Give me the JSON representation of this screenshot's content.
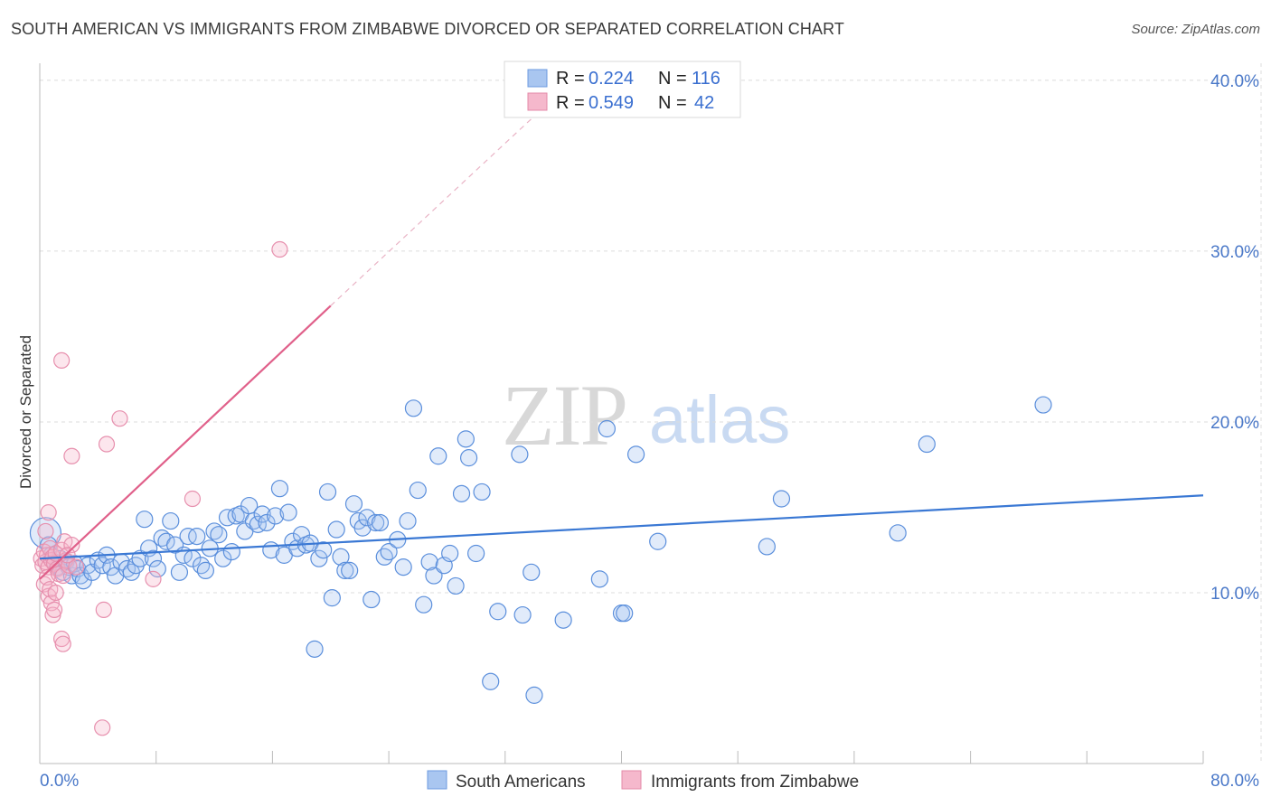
{
  "header": {
    "title": "SOUTH AMERICAN VS IMMIGRANTS FROM ZIMBABWE DIVORCED OR SEPARATED CORRELATION CHART",
    "source": "Source: ZipAtlas.com"
  },
  "watermark": {
    "zip": "ZIP",
    "atlas": "atlas"
  },
  "colors": {
    "blue": "#3a78d4",
    "blue_fill": "#a9c6f0",
    "pink": "#e0608a",
    "pink_fill": "#f5b8cc",
    "tick_text": "#4a78c8"
  },
  "legend_top": {
    "rows": [
      {
        "r_label": "R =",
        "r_value": "0.224",
        "n_label": "N =",
        "n_value": "116"
      },
      {
        "r_label": "R =",
        "r_value": "0.549",
        "n_label": "N =",
        "n_value": "42"
      }
    ]
  },
  "legend_bottom": {
    "items": [
      {
        "label": "South Americans"
      },
      {
        "label": "Immigrants from Zimbabwe"
      }
    ]
  },
  "chart_data": {
    "type": "scatter",
    "title": "SOUTH AMERICAN VS IMMIGRANTS FROM ZIMBABWE DIVORCED OR SEPARATED CORRELATION CHART",
    "xlabel": "",
    "ylabel": "Divorced or Separated",
    "xlim": [
      0,
      80
    ],
    "ylim": [
      0,
      41
    ],
    "x_tick_labels": [
      "0.0%",
      "80.0%"
    ],
    "y_ticks": [
      10,
      20,
      30,
      40
    ],
    "y_tick_labels": [
      "10.0%",
      "20.0%",
      "30.0%",
      "40.0%"
    ],
    "grid": true,
    "legend_placement": "bottom",
    "series": [
      {
        "name": "South Americans",
        "color": "#3a78d4",
        "R": 0.224,
        "N": 116,
        "trend": {
          "x": [
            0,
            80
          ],
          "y": [
            12.0,
            15.7
          ],
          "style": "solid"
        },
        "points": [
          [
            0.4,
            13.5
          ],
          [
            0.6,
            12.8
          ],
          [
            0.8,
            12.2
          ],
          [
            1.0,
            11.8
          ],
          [
            1.2,
            11.5
          ],
          [
            1.4,
            12.0
          ],
          [
            1.6,
            11.2
          ],
          [
            1.8,
            11.8
          ],
          [
            2.0,
            11.5
          ],
          [
            2.2,
            11.0
          ],
          [
            2.4,
            11.7
          ],
          [
            2.6,
            11.4
          ],
          [
            2.8,
            11.0
          ],
          [
            3.0,
            10.7
          ],
          [
            3.3,
            11.6
          ],
          [
            3.6,
            11.2
          ],
          [
            4.0,
            11.9
          ],
          [
            4.3,
            11.6
          ],
          [
            4.6,
            12.2
          ],
          [
            4.9,
            11.5
          ],
          [
            5.2,
            11.0
          ],
          [
            5.6,
            11.8
          ],
          [
            6.0,
            11.4
          ],
          [
            6.3,
            11.2
          ],
          [
            6.6,
            11.6
          ],
          [
            6.9,
            12.0
          ],
          [
            7.2,
            14.3
          ],
          [
            7.5,
            12.6
          ],
          [
            7.8,
            12.0
          ],
          [
            8.1,
            11.4
          ],
          [
            8.4,
            13.2
          ],
          [
            8.7,
            13.0
          ],
          [
            9.0,
            14.2
          ],
          [
            9.3,
            12.8
          ],
          [
            9.6,
            11.2
          ],
          [
            9.9,
            12.2
          ],
          [
            10.2,
            13.3
          ],
          [
            10.5,
            12.0
          ],
          [
            10.8,
            13.3
          ],
          [
            11.1,
            11.6
          ],
          [
            11.4,
            11.3
          ],
          [
            11.7,
            12.6
          ],
          [
            12.0,
            13.6
          ],
          [
            12.3,
            13.4
          ],
          [
            12.6,
            12.0
          ],
          [
            12.9,
            14.4
          ],
          [
            13.2,
            12.4
          ],
          [
            13.5,
            14.5
          ],
          [
            13.8,
            14.6
          ],
          [
            14.1,
            13.6
          ],
          [
            14.4,
            15.1
          ],
          [
            14.7,
            14.2
          ],
          [
            15.0,
            14.0
          ],
          [
            15.3,
            14.6
          ],
          [
            15.6,
            14.1
          ],
          [
            15.9,
            12.5
          ],
          [
            16.2,
            14.5
          ],
          [
            16.5,
            16.1
          ],
          [
            16.8,
            12.2
          ],
          [
            17.1,
            14.7
          ],
          [
            17.4,
            13.0
          ],
          [
            17.7,
            12.6
          ],
          [
            18.0,
            13.4
          ],
          [
            18.3,
            12.8
          ],
          [
            18.6,
            12.9
          ],
          [
            18.9,
            6.7
          ],
          [
            19.2,
            12.0
          ],
          [
            19.5,
            12.5
          ],
          [
            19.8,
            15.9
          ],
          [
            20.1,
            9.7
          ],
          [
            20.4,
            13.7
          ],
          [
            20.7,
            12.1
          ],
          [
            21.0,
            11.3
          ],
          [
            21.3,
            11.3
          ],
          [
            21.6,
            15.2
          ],
          [
            21.9,
            14.2
          ],
          [
            22.2,
            13.8
          ],
          [
            22.5,
            14.4
          ],
          [
            22.8,
            9.6
          ],
          [
            23.1,
            14.1
          ],
          [
            23.4,
            14.1
          ],
          [
            23.7,
            12.1
          ],
          [
            24.0,
            12.4
          ],
          [
            24.6,
            13.1
          ],
          [
            25.0,
            11.5
          ],
          [
            25.3,
            14.2
          ],
          [
            25.7,
            20.8
          ],
          [
            26.0,
            16.0
          ],
          [
            26.4,
            9.3
          ],
          [
            26.8,
            11.8
          ],
          [
            27.1,
            11.0
          ],
          [
            27.4,
            18.0
          ],
          [
            27.8,
            11.6
          ],
          [
            28.2,
            12.3
          ],
          [
            28.6,
            10.4
          ],
          [
            29.0,
            15.8
          ],
          [
            29.3,
            19.0
          ],
          [
            29.5,
            17.9
          ],
          [
            30.0,
            12.3
          ],
          [
            30.4,
            15.9
          ],
          [
            31.0,
            4.8
          ],
          [
            31.5,
            8.9
          ],
          [
            33.0,
            18.1
          ],
          [
            33.2,
            8.7
          ],
          [
            33.8,
            11.2
          ],
          [
            34.0,
            4.0
          ],
          [
            36.0,
            8.4
          ],
          [
            38.5,
            10.8
          ],
          [
            39.0,
            19.6
          ],
          [
            40.0,
            8.8
          ],
          [
            40.2,
            8.8
          ],
          [
            41.0,
            18.1
          ],
          [
            42.5,
            13.0
          ],
          [
            50.0,
            12.7
          ],
          [
            51.0,
            15.5
          ],
          [
            59.0,
            13.5
          ],
          [
            61.0,
            18.7
          ],
          [
            69.0,
            21.0
          ]
        ]
      },
      {
        "name": "Immigrants from Zimbabwe",
        "color": "#e0608a",
        "R": 0.549,
        "N": 42,
        "trend": {
          "x": [
            0,
            20
          ],
          "y": [
            10.8,
            26.8
          ],
          "style": "solid",
          "extension_x": [
            20,
            34
          ],
          "extension_y": [
            26.8,
            37.9
          ],
          "extension_style": "dashed"
        },
        "points": [
          [
            0.1,
            12.0
          ],
          [
            0.2,
            11.6
          ],
          [
            0.3,
            12.4
          ],
          [
            0.4,
            11.8
          ],
          [
            0.5,
            12.2
          ],
          [
            0.6,
            11.5
          ],
          [
            0.7,
            12.6
          ],
          [
            0.8,
            11.9
          ],
          [
            0.9,
            12.1
          ],
          [
            1.0,
            11.7
          ],
          [
            1.1,
            12.3
          ],
          [
            1.2,
            11.4
          ],
          [
            0.3,
            10.5
          ],
          [
            0.5,
            10.9
          ],
          [
            0.6,
            9.8
          ],
          [
            0.7,
            10.2
          ],
          [
            0.8,
            9.4
          ],
          [
            0.9,
            8.7
          ],
          [
            1.0,
            9.0
          ],
          [
            1.1,
            10.0
          ],
          [
            1.3,
            11.1
          ],
          [
            1.5,
            12.5
          ],
          [
            1.6,
            11.0
          ],
          [
            1.7,
            13.0
          ],
          [
            0.4,
            13.6
          ],
          [
            0.6,
            14.7
          ],
          [
            1.8,
            11.9
          ],
          [
            2.0,
            11.6
          ],
          [
            1.5,
            7.3
          ],
          [
            1.6,
            7.0
          ],
          [
            2.2,
            12.8
          ],
          [
            2.5,
            11.5
          ],
          [
            1.5,
            23.6
          ],
          [
            2.2,
            18.0
          ],
          [
            4.6,
            18.7
          ],
          [
            5.5,
            20.2
          ],
          [
            7.8,
            10.8
          ],
          [
            10.5,
            15.5
          ],
          [
            4.4,
            9.0
          ],
          [
            4.3,
            2.1
          ],
          [
            16.5,
            30.1
          ],
          [
            1.9,
            12.2
          ]
        ]
      }
    ]
  }
}
